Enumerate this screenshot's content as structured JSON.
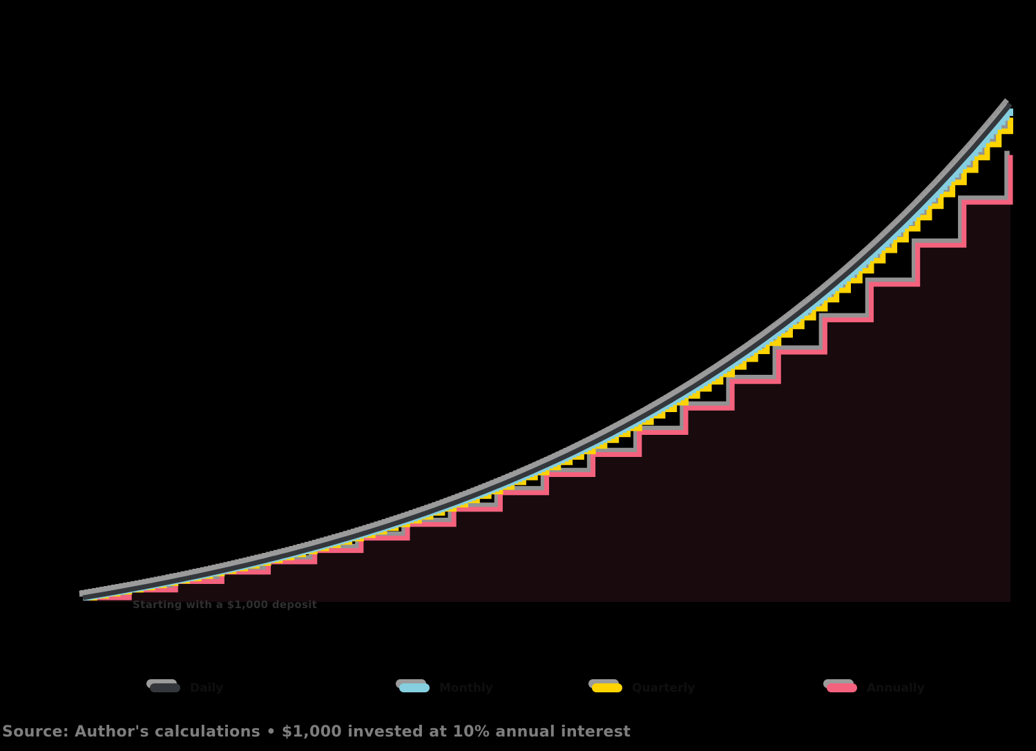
{
  "page": {
    "background": "#000000"
  },
  "caption": {
    "text": "Source: Author's calculations • $1,000 invested at 10% annual interest",
    "color": "#7e7e7e"
  },
  "annotation": {
    "text": "Starting with a $1,000 deposit",
    "color": "#2f2f2f"
  },
  "legend": {
    "label_color": "#0f0f0f",
    "shadow_color": "#9b9b9b",
    "items": [
      {
        "label": "Daily",
        "color": "#34373b"
      },
      {
        "label": "Monthly",
        "color": "#85cfe0"
      },
      {
        "label": "Quarterly",
        "color": "#ffd400"
      },
      {
        "label": "Annually",
        "color": "#f4627e"
      }
    ]
  },
  "chart_data": {
    "type": "line",
    "title": "",
    "xlabel": "",
    "ylabel": "",
    "principal": 1000,
    "annual_rate": 0.1,
    "years": 20,
    "x_range": [
      0,
      20
    ],
    "y_range": [
      1000,
      7400
    ],
    "grid": false,
    "legend_position": "bottom",
    "categories": [
      0,
      1,
      2,
      3,
      4,
      5,
      6,
      7,
      8,
      9,
      10,
      11,
      12,
      13,
      14,
      15,
      16,
      17,
      18,
      19,
      20
    ],
    "series": [
      {
        "name": "Daily",
        "compounds_per_year": 365,
        "color": "#34373b",
        "style": "smooth",
        "end_value": 7387,
        "values": [
          1000,
          1105,
          1221,
          1350,
          1492,
          1649,
          1822,
          2014,
          2225,
          2459,
          2718,
          3004,
          3319,
          3668,
          4054,
          4481,
          4952,
          5472,
          6048,
          6684,
          7387
        ]
      },
      {
        "name": "Monthly",
        "compounds_per_year": 12,
        "color": "#85cfe0",
        "style": "step",
        "end_value": 7328,
        "values": [
          1000,
          1105,
          1220,
          1348,
          1489,
          1645,
          1818,
          2008,
          2218,
          2450,
          2707,
          2991,
          3304,
          3650,
          4032,
          4454,
          4920,
          5436,
          6005,
          6633,
          7328
        ]
      },
      {
        "name": "Quarterly",
        "compounds_per_year": 4,
        "color": "#ffd400",
        "style": "step",
        "end_value": 7210,
        "values": [
          1000,
          1104,
          1218,
          1345,
          1485,
          1639,
          1809,
          1997,
          2204,
          2433,
          2685,
          2964,
          3271,
          3611,
          3986,
          4400,
          4857,
          5361,
          5917,
          6531,
          7210
        ]
      },
      {
        "name": "Annually",
        "compounds_per_year": 1,
        "color": "#f4627e",
        "style": "step",
        "fill_below": true,
        "fill_color": "rgba(243,98,126,0.10)",
        "end_value": 6727,
        "values": [
          1000,
          1100,
          1210,
          1331,
          1464,
          1611,
          1772,
          1949,
          2144,
          2358,
          2594,
          2853,
          3138,
          3452,
          3797,
          4177,
          4595,
          5054,
          5560,
          6116,
          6727
        ]
      }
    ]
  }
}
